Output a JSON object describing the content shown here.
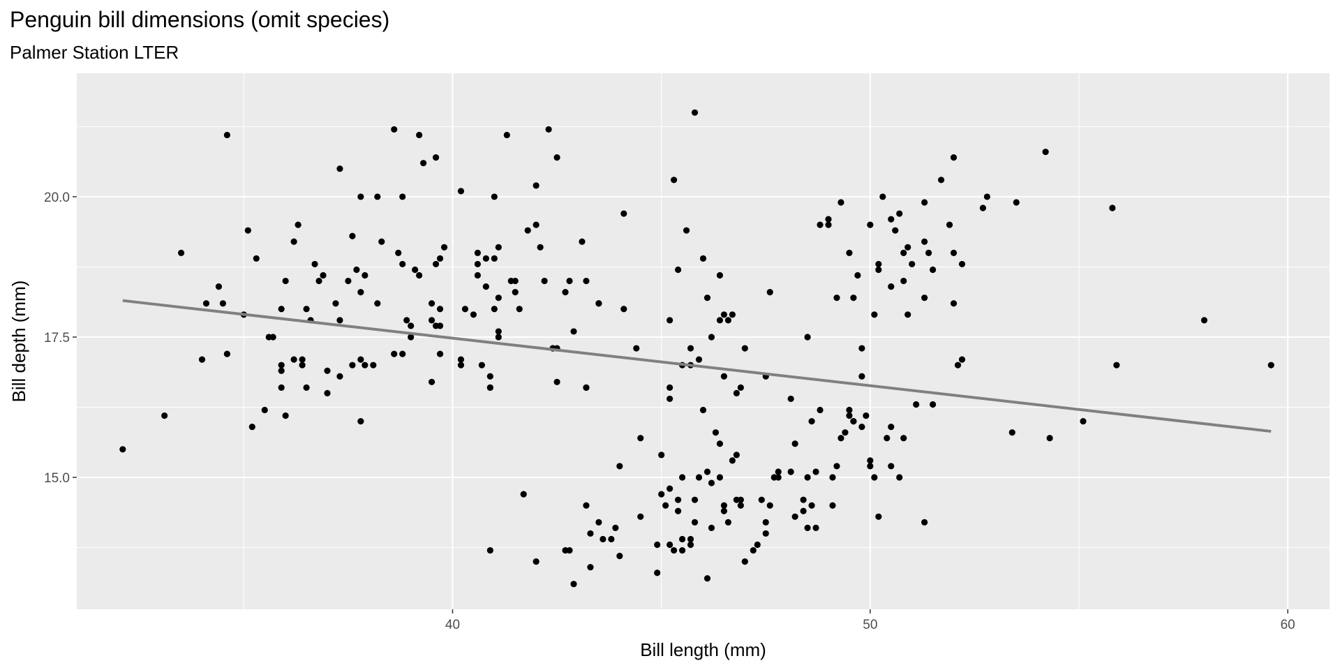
{
  "chart_data": {
    "type": "scatter",
    "title": "Penguin bill dimensions (omit species)",
    "subtitle": "Palmer Station LTER",
    "xlabel": "Bill length (mm)",
    "ylabel": "Bill depth (mm)",
    "xlim": [
      31.0,
      61.0
    ],
    "ylim": [
      12.65,
      22.2
    ],
    "x_ticks": [
      40,
      50,
      60
    ],
    "x_tick_labels": [
      "40",
      "50",
      "60"
    ],
    "y_ticks": [
      15.0,
      17.5,
      20.0
    ],
    "y_tick_labels": [
      "15.0",
      "17.5",
      "20.0"
    ],
    "grid": true,
    "trend_line": {
      "x": [
        32.1,
        59.6
      ],
      "y": [
        18.15,
        15.82
      ],
      "color": "#808080"
    },
    "colors": {
      "panel": "#ebebeb",
      "grid": "#ffffff",
      "point": "#000000",
      "axis_text": "#4d4d4d"
    },
    "points": [
      [
        32.1,
        15.5
      ],
      [
        33.1,
        16.1
      ],
      [
        33.5,
        19.0
      ],
      [
        34.0,
        17.1
      ],
      [
        34.1,
        18.1
      ],
      [
        34.4,
        18.4
      ],
      [
        34.5,
        18.1
      ],
      [
        34.6,
        21.1
      ],
      [
        34.6,
        17.2
      ],
      [
        35.1,
        19.4
      ],
      [
        35.2,
        15.9
      ],
      [
        35.3,
        18.9
      ],
      [
        35.5,
        16.2
      ],
      [
        35.6,
        17.5
      ],
      [
        35.7,
        17.5
      ],
      [
        35.9,
        16.6
      ],
      [
        35.9,
        17.0
      ],
      [
        35.9,
        16.9
      ],
      [
        35.9,
        18.0
      ],
      [
        36.2,
        19.2
      ],
      [
        36.2,
        17.1
      ],
      [
        36.3,
        19.5
      ],
      [
        36.4,
        17.1
      ],
      [
        36.4,
        17.0
      ],
      [
        36.5,
        18.0
      ],
      [
        36.6,
        17.8
      ],
      [
        36.7,
        18.8
      ],
      [
        36.8,
        18.5
      ],
      [
        36.9,
        18.6
      ],
      [
        37.0,
        16.9
      ],
      [
        37.0,
        16.5
      ],
      [
        37.2,
        18.1
      ],
      [
        37.3,
        17.8
      ],
      [
        37.3,
        20.5
      ],
      [
        37.6,
        17.0
      ],
      [
        37.7,
        18.7
      ],
      [
        37.8,
        18.3
      ],
      [
        37.8,
        17.1
      ],
      [
        37.8,
        20.0
      ],
      [
        37.9,
        18.6
      ],
      [
        38.1,
        17.0
      ],
      [
        38.2,
        18.1
      ],
      [
        38.2,
        20.0
      ],
      [
        38.6,
        21.2
      ],
      [
        38.6,
        17.2
      ],
      [
        38.7,
        19.0
      ],
      [
        38.8,
        17.2
      ],
      [
        38.8,
        20.0
      ],
      [
        39.0,
        17.5
      ],
      [
        39.1,
        18.7
      ],
      [
        39.2,
        18.6
      ],
      [
        39.2,
        21.1
      ],
      [
        39.3,
        20.6
      ],
      [
        39.5,
        16.7
      ],
      [
        39.5,
        17.8
      ],
      [
        39.6,
        18.8
      ],
      [
        39.6,
        20.7
      ],
      [
        39.7,
        17.7
      ],
      [
        39.7,
        18.9
      ],
      [
        39.8,
        19.1
      ],
      [
        40.2,
        17.0
      ],
      [
        40.2,
        20.1
      ],
      [
        40.3,
        18.0
      ],
      [
        40.5,
        17.9
      ],
      [
        40.6,
        18.8
      ],
      [
        40.7,
        17.0
      ],
      [
        40.8,
        18.4
      ],
      [
        40.9,
        16.6
      ],
      [
        41.0,
        20.0
      ],
      [
        41.1,
        17.6
      ],
      [
        41.1,
        17.5
      ],
      [
        41.1,
        18.2
      ],
      [
        41.3,
        21.1
      ],
      [
        41.4,
        18.5
      ],
      [
        41.5,
        18.3
      ],
      [
        41.6,
        18.0
      ],
      [
        42.0,
        20.2
      ],
      [
        42.1,
        19.1
      ],
      [
        42.2,
        18.5
      ],
      [
        42.4,
        17.3
      ],
      [
        42.5,
        20.7
      ],
      [
        42.7,
        18.3
      ],
      [
        42.8,
        18.5
      ],
      [
        43.1,
        19.2
      ],
      [
        43.2,
        18.5
      ],
      [
        43.2,
        16.6
      ],
      [
        43.5,
        18.1
      ],
      [
        44.1,
        18.0
      ],
      [
        44.1,
        19.7
      ],
      [
        44.4,
        17.3
      ],
      [
        37.8,
        16.0
      ],
      [
        38.3,
        19.2
      ],
      [
        38.9,
        17.8
      ],
      [
        39.5,
        18.1
      ],
      [
        40.9,
        16.8
      ],
      [
        41.8,
        19.4
      ],
      [
        42.3,
        21.2
      ],
      [
        39.7,
        17.2
      ],
      [
        40.6,
        19.0
      ],
      [
        36.0,
        18.5
      ],
      [
        37.6,
        19.3
      ],
      [
        36.5,
        16.6
      ],
      [
        35.0,
        17.9
      ],
      [
        39.0,
        17.7
      ],
      [
        40.6,
        18.6
      ],
      [
        41.1,
        19.1
      ],
      [
        41.5,
        18.5
      ],
      [
        37.5,
        18.5
      ],
      [
        42.0,
        19.5
      ],
      [
        41.0,
        18.9
      ],
      [
        39.6,
        17.7
      ],
      [
        39.7,
        18.0
      ],
      [
        41.0,
        18.0
      ],
      [
        40.8,
        18.9
      ],
      [
        37.9,
        17.0
      ],
      [
        40.2,
        17.1
      ],
      [
        42.9,
        17.6
      ],
      [
        38.8,
        18.8
      ],
      [
        37.3,
        16.8
      ],
      [
        36.0,
        16.1
      ],
      [
        42.9,
        13.1
      ],
      [
        40.9,
        13.7
      ],
      [
        41.7,
        14.7
      ],
      [
        42.0,
        13.5
      ],
      [
        42.7,
        13.7
      ],
      [
        42.8,
        13.7
      ],
      [
        43.2,
        14.5
      ],
      [
        43.3,
        13.4
      ],
      [
        43.3,
        14.0
      ],
      [
        43.5,
        14.2
      ],
      [
        43.6,
        13.9
      ],
      [
        43.8,
        13.9
      ],
      [
        44.0,
        13.6
      ],
      [
        44.5,
        14.3
      ],
      [
        44.5,
        15.7
      ],
      [
        44.9,
        13.8
      ],
      [
        44.9,
        13.3
      ],
      [
        45.0,
        15.4
      ],
      [
        45.1,
        14.5
      ],
      [
        45.2,
        13.8
      ],
      [
        45.2,
        14.8
      ],
      [
        45.3,
        13.7
      ],
      [
        45.4,
        14.6
      ],
      [
        45.5,
        13.7
      ],
      [
        45.5,
        13.9
      ],
      [
        45.5,
        15.0
      ],
      [
        45.7,
        13.9
      ],
      [
        45.8,
        14.2
      ],
      [
        45.8,
        14.6
      ],
      [
        46.1,
        15.1
      ],
      [
        46.1,
        13.2
      ],
      [
        46.2,
        14.1
      ],
      [
        46.2,
        14.9
      ],
      [
        46.3,
        15.8
      ],
      [
        46.4,
        15.0
      ],
      [
        46.4,
        15.6
      ],
      [
        46.5,
        14.5
      ],
      [
        46.5,
        14.4
      ],
      [
        46.6,
        14.2
      ],
      [
        46.8,
        14.6
      ],
      [
        46.8,
        15.4
      ],
      [
        46.9,
        14.6
      ],
      [
        47.2,
        13.7
      ],
      [
        47.3,
        13.8
      ],
      [
        47.4,
        14.6
      ],
      [
        47.5,
        14.2
      ],
      [
        47.5,
        14.0
      ],
      [
        47.6,
        14.5
      ],
      [
        47.7,
        15.0
      ],
      [
        47.8,
        15.0
      ],
      [
        48.1,
        15.1
      ],
      [
        48.2,
        14.3
      ],
      [
        48.2,
        15.6
      ],
      [
        48.4,
        14.6
      ],
      [
        48.4,
        14.4
      ],
      [
        48.5,
        14.1
      ],
      [
        48.6,
        16.0
      ],
      [
        48.7,
        14.1
      ],
      [
        48.7,
        15.1
      ],
      [
        48.8,
        16.2
      ],
      [
        49.1,
        14.5
      ],
      [
        49.1,
        15.0
      ],
      [
        49.2,
        15.2
      ],
      [
        49.3,
        15.7
      ],
      [
        49.4,
        15.8
      ],
      [
        49.5,
        16.2
      ],
      [
        49.6,
        16.0
      ],
      [
        49.8,
        15.9
      ],
      [
        49.9,
        16.1
      ],
      [
        50.0,
        15.3
      ],
      [
        50.0,
        15.2
      ],
      [
        50.1,
        15.0
      ],
      [
        50.2,
        14.3
      ],
      [
        50.4,
        15.7
      ],
      [
        50.5,
        15.9
      ],
      [
        50.5,
        15.2
      ],
      [
        50.7,
        15.0
      ],
      [
        50.8,
        15.7
      ],
      [
        51.1,
        16.3
      ],
      [
        51.3,
        14.2
      ],
      [
        51.5,
        16.3
      ],
      [
        52.2,
        17.1
      ],
      [
        53.4,
        15.8
      ],
      [
        54.3,
        15.7
      ],
      [
        55.1,
        16.0
      ],
      [
        55.9,
        17.0
      ],
      [
        59.6,
        17.0
      ],
      [
        44.0,
        15.2
      ],
      [
        46.9,
        14.5
      ],
      [
        45.7,
        13.8
      ],
      [
        48.5,
        15.0
      ],
      [
        45.0,
        14.7
      ],
      [
        47.0,
        13.5
      ],
      [
        45.4,
        14.4
      ],
      [
        46.7,
        15.3
      ],
      [
        48.6,
        14.5
      ],
      [
        43.9,
        14.1
      ],
      [
        47.8,
        15.1
      ],
      [
        49.6,
        16.0
      ],
      [
        45.9,
        15.0
      ],
      [
        49.5,
        16.1
      ],
      [
        46.5,
        17.9
      ],
      [
        50.0,
        19.5
      ],
      [
        51.3,
        19.2
      ],
      [
        45.4,
        18.7
      ],
      [
        52.7,
        19.8
      ],
      [
        45.2,
        17.8
      ],
      [
        46.1,
        18.2
      ],
      [
        51.3,
        18.2
      ],
      [
        46.0,
        18.9
      ],
      [
        51.3,
        19.9
      ],
      [
        46.6,
        17.8
      ],
      [
        51.7,
        20.3
      ],
      [
        47.0,
        17.3
      ],
      [
        52.0,
        18.1
      ],
      [
        45.9,
        17.1
      ],
      [
        50.5,
        19.6
      ],
      [
        50.3,
        20.0
      ],
      [
        58.0,
        17.8
      ],
      [
        46.4,
        18.6
      ],
      [
        49.2,
        18.2
      ],
      [
        42.4,
        17.3
      ],
      [
        48.5,
        17.5
      ],
      [
        43.2,
        16.6
      ],
      [
        50.6,
        19.4
      ],
      [
        46.7,
        17.9
      ],
      [
        52.0,
        19.0
      ],
      [
        50.5,
        18.4
      ],
      [
        49.5,
        19.0
      ],
      [
        46.4,
        17.8
      ],
      [
        52.8,
        20.0
      ],
      [
        40.9,
        16.6
      ],
      [
        54.2,
        20.8
      ],
      [
        42.5,
        16.7
      ],
      [
        51.0,
        18.8
      ],
      [
        49.7,
        18.6
      ],
      [
        47.5,
        16.8
      ],
      [
        47.6,
        18.3
      ],
      [
        52.0,
        20.7
      ],
      [
        46.9,
        16.6
      ],
      [
        53.5,
        19.9
      ],
      [
        49.0,
        19.5
      ],
      [
        46.2,
        17.5
      ],
      [
        50.9,
        19.1
      ],
      [
        45.5,
        17.0
      ],
      [
        50.9,
        17.9
      ],
      [
        50.8,
        18.5
      ],
      [
        50.1,
        17.9
      ],
      [
        49.0,
        19.6
      ],
      [
        51.5,
        18.7
      ],
      [
        49.8,
        17.3
      ],
      [
        48.1,
        16.4
      ],
      [
        51.4,
        19.0
      ],
      [
        45.7,
        17.3
      ],
      [
        50.7,
        19.7
      ],
      [
        42.5,
        17.3
      ],
      [
        52.2,
        18.8
      ],
      [
        45.2,
        16.6
      ],
      [
        49.3,
        19.9
      ],
      [
        50.2,
        18.8
      ],
      [
        45.6,
        19.4
      ],
      [
        51.9,
        19.5
      ],
      [
        46.8,
        16.5
      ],
      [
        45.7,
        17.0
      ],
      [
        55.8,
        19.8
      ],
      [
        43.5,
        18.1
      ],
      [
        49.6,
        18.2
      ],
      [
        50.8,
        19.0
      ],
      [
        50.2,
        18.7
      ],
      [
        45.3,
        20.3
      ],
      [
        45.8,
        21.5
      ],
      [
        48.8,
        19.5
      ],
      [
        46.0,
        16.2
      ],
      [
        49.8,
        16.8
      ],
      [
        52.1,
        17.0
      ],
      [
        45.2,
        16.4
      ],
      [
        46.5,
        16.8
      ]
    ]
  }
}
